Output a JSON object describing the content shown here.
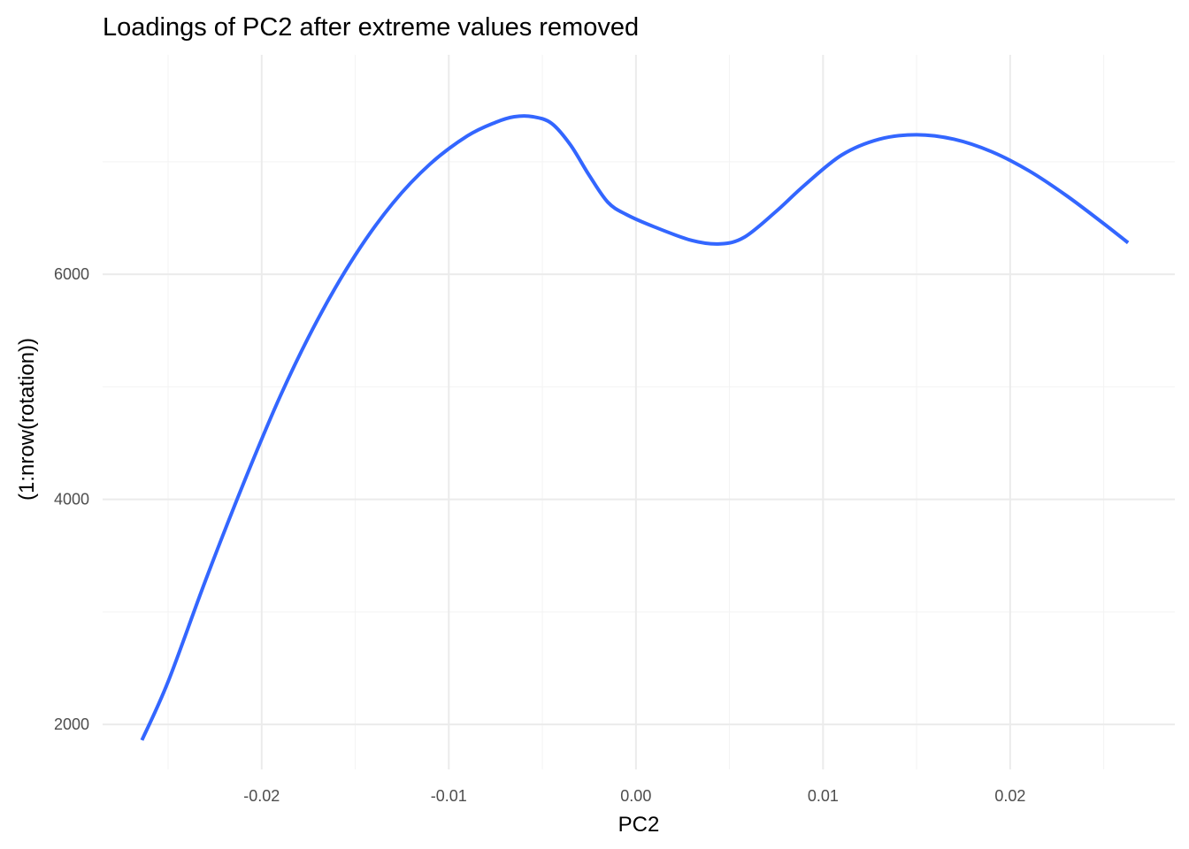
{
  "chart_data": {
    "type": "line",
    "title": "Loadings of PC2 after extreme values removed",
    "xlabel": "PC2",
    "ylabel": "(1:nrow(rotation))",
    "xlim": [
      -0.0285,
      0.0288
    ],
    "ylim": [
      1600,
      7950
    ],
    "x_ticks": [
      -0.02,
      -0.01,
      0.0,
      0.01,
      0.02
    ],
    "x_tick_labels": [
      "-0.02",
      "-0.01",
      "0.00",
      "0.01",
      "0.02"
    ],
    "x_minor_ticks": [
      -0.025,
      -0.015,
      -0.005,
      0.005,
      0.015,
      0.025
    ],
    "y_ticks": [
      2000,
      4000,
      6000
    ],
    "y_tick_labels": [
      "2000",
      "4000",
      "6000"
    ],
    "y_minor_ticks": [
      3000,
      5000,
      7000
    ],
    "grid": true,
    "legend": "none",
    "line_color": "#3366FF",
    "series": [
      {
        "x": [
          -0.0264,
          -0.025,
          -0.023,
          -0.021,
          -0.019,
          -0.017,
          -0.015,
          -0.013,
          -0.011,
          -0.009,
          -0.0075,
          -0.0065,
          -0.0055,
          -0.0045,
          -0.0035,
          -0.0025,
          -0.0015,
          -0.0005,
          0.001,
          0.003,
          0.0045,
          0.0058,
          0.0075,
          0.009,
          0.011,
          0.013,
          0.015,
          0.017,
          0.019,
          0.021,
          0.023,
          0.025,
          0.0263
        ],
        "y": [
          1860,
          2380,
          3280,
          4130,
          4920,
          5600,
          6170,
          6630,
          6980,
          7230,
          7350,
          7400,
          7400,
          7340,
          7150,
          6880,
          6640,
          6530,
          6420,
          6300,
          6270,
          6330,
          6560,
          6790,
          7060,
          7200,
          7240,
          7200,
          7090,
          6920,
          6700,
          6450,
          6280
        ]
      }
    ]
  }
}
